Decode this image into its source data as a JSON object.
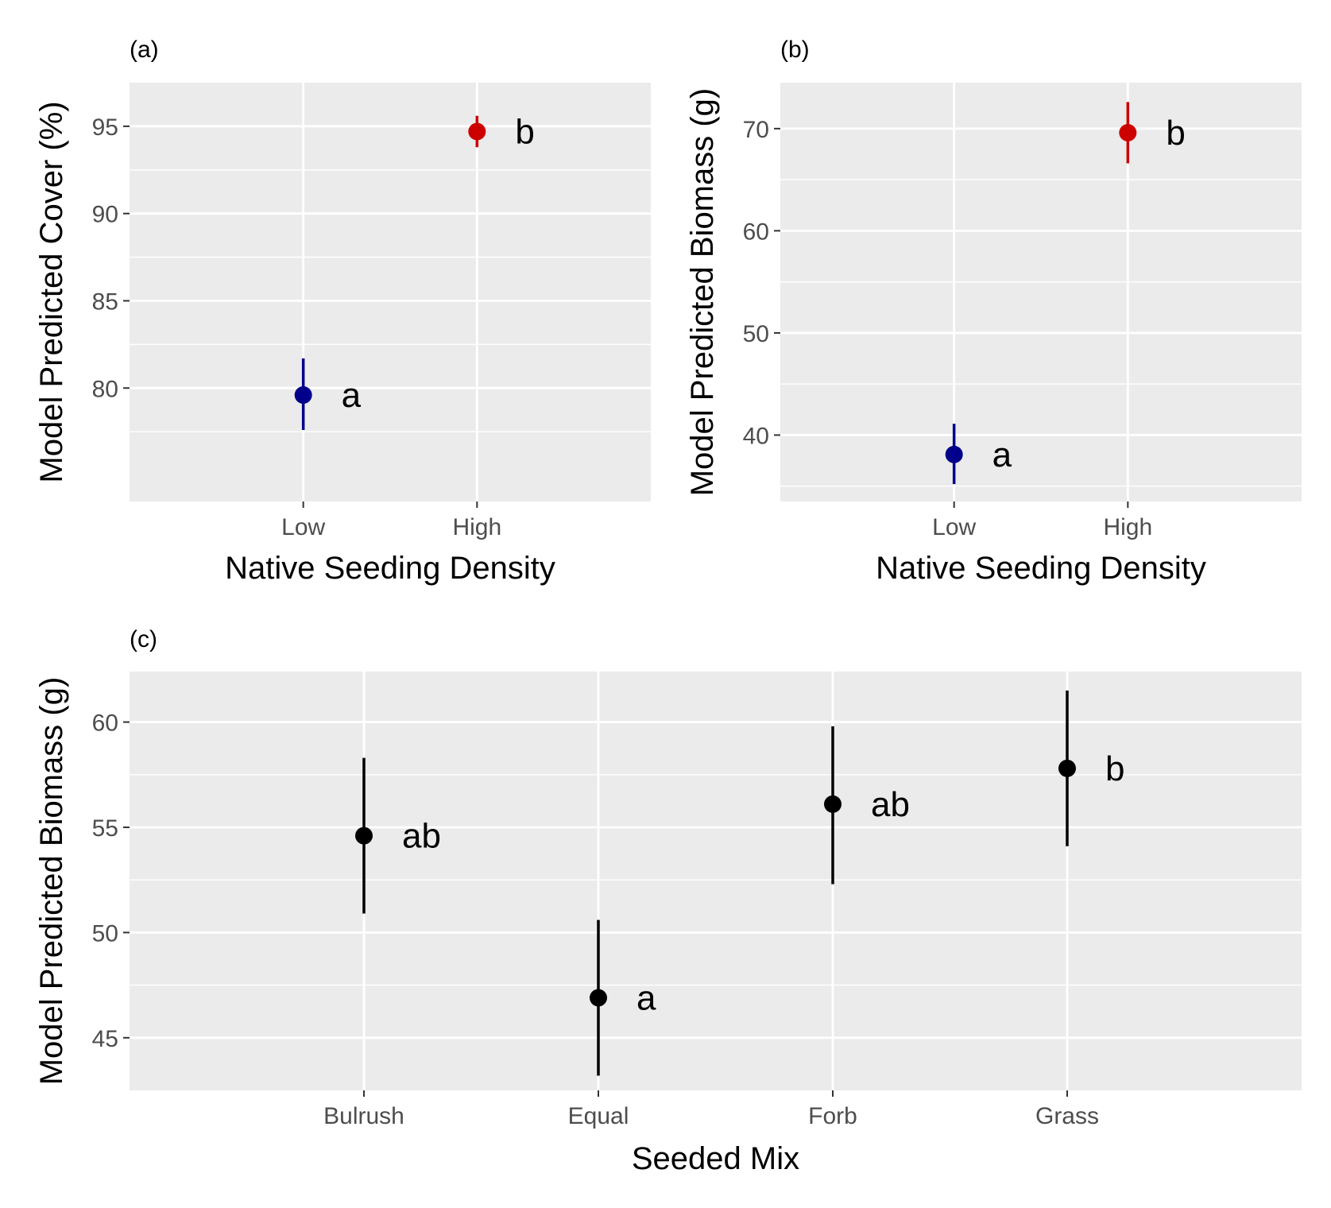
{
  "chart_data": [
    {
      "type": "pointrange",
      "tag": "(a)",
      "xlabel": "Native Seeding Density",
      "ylabel": "Model Predicted Cover (%)",
      "categories": [
        "Low",
        "High"
      ],
      "ylim": [
        73.5,
        97.5
      ],
      "yticks": [
        80,
        85,
        90,
        95
      ],
      "grid": true,
      "points": [
        {
          "category": "Low",
          "value": 79.6,
          "lower": 77.6,
          "upper": 81.7,
          "letter": "a",
          "color": "#00008B"
        },
        {
          "category": "High",
          "value": 94.7,
          "lower": 93.8,
          "upper": 95.6,
          "letter": "b",
          "color": "#CD0000"
        }
      ]
    },
    {
      "type": "pointrange",
      "tag": "(b)",
      "xlabel": "Native Seeding Density",
      "ylabel": "Model Predicted Biomass (g)",
      "categories": [
        "Low",
        "High"
      ],
      "ylim": [
        33.5,
        74.5
      ],
      "yticks": [
        40,
        50,
        60,
        70
      ],
      "grid": true,
      "points": [
        {
          "category": "Low",
          "value": 38.1,
          "lower": 35.2,
          "upper": 41.1,
          "letter": "a",
          "color": "#00008B"
        },
        {
          "category": "High",
          "value": 69.6,
          "lower": 66.6,
          "upper": 72.6,
          "letter": "b",
          "color": "#CD0000"
        }
      ]
    },
    {
      "type": "pointrange",
      "tag": "(c)",
      "xlabel": "Seeded Mix",
      "ylabel": "Model Predicted Biomass (g)",
      "categories": [
        "Bulrush",
        "Equal",
        "Forb",
        "Grass"
      ],
      "ylim": [
        42.5,
        62.4
      ],
      "yticks": [
        45,
        50,
        55,
        60
      ],
      "grid": true,
      "points": [
        {
          "category": "Bulrush",
          "value": 54.6,
          "lower": 50.9,
          "upper": 58.3,
          "letter": "ab",
          "color": "#000000"
        },
        {
          "category": "Equal",
          "value": 46.9,
          "lower": 43.2,
          "upper": 50.6,
          "letter": "a",
          "color": "#000000"
        },
        {
          "category": "Forb",
          "value": 56.1,
          "lower": 52.3,
          "upper": 59.8,
          "letter": "ab",
          "color": "#000000"
        },
        {
          "category": "Grass",
          "value": 57.8,
          "lower": 54.1,
          "upper": 61.5,
          "letter": "b",
          "color": "#000000"
        }
      ]
    }
  ]
}
